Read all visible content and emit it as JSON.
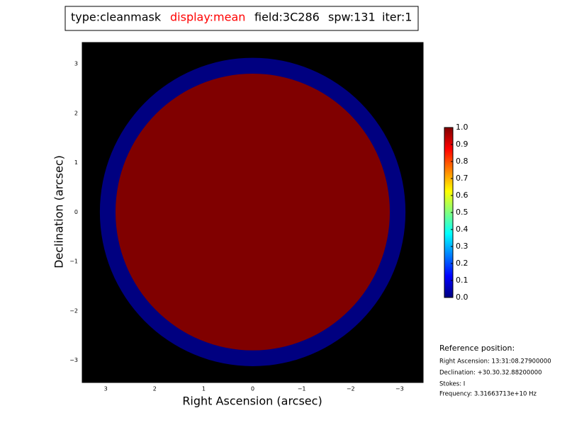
{
  "chart_data": {
    "type": "image",
    "title_parts": [
      {
        "text": "type:cleanmask",
        "color": "#000000"
      },
      {
        "text": "display:mean",
        "color": "#ff0000"
      },
      {
        "text": "field:3C286",
        "color": "#000000"
      },
      {
        "text": "spw:131",
        "color": "#000000"
      },
      {
        "text": "iter:1",
        "color": "#000000"
      }
    ],
    "x_label": "Right Ascension (arcsec)",
    "y_label": "Declination (arcsec)",
    "xlim": [
      3.48,
      -3.48
    ],
    "ylim": [
      -3.45,
      3.43
    ],
    "xticks": [
      3,
      2,
      1,
      0,
      {
        "value": -1,
        "label": "−1"
      },
      {
        "value": -2,
        "label": "−2"
      },
      {
        "value": -3,
        "label": "−3"
      }
    ],
    "yticks": [
      3,
      2,
      1,
      0,
      {
        "value": -1,
        "label": "−1"
      },
      {
        "value": -2,
        "label": "−2"
      },
      {
        "value": -3,
        "label": "−3"
      }
    ],
    "background": "#000000",
    "regions": [
      {
        "radius": 3.12,
        "value": 0
      },
      {
        "radius": 2.8,
        "value": 1
      }
    ],
    "colorbar": {
      "lim": [
        0,
        1
      ],
      "ticks": [
        {
          "value": 0,
          "label": "0.0"
        },
        0.1,
        0.2,
        0.3,
        0.4,
        0.5,
        0.6,
        0.7,
        0.8,
        0.9,
        {
          "value": 1,
          "label": "1.0"
        }
      ]
    },
    "annotations": [
      "Reference position:",
      "Right Ascension: 13:31:08.27900000",
      "Declination: +30.30.32.88200000",
      "Stokes: I",
      "Frequency: 3.31663713e+10 Hz"
    ]
  }
}
